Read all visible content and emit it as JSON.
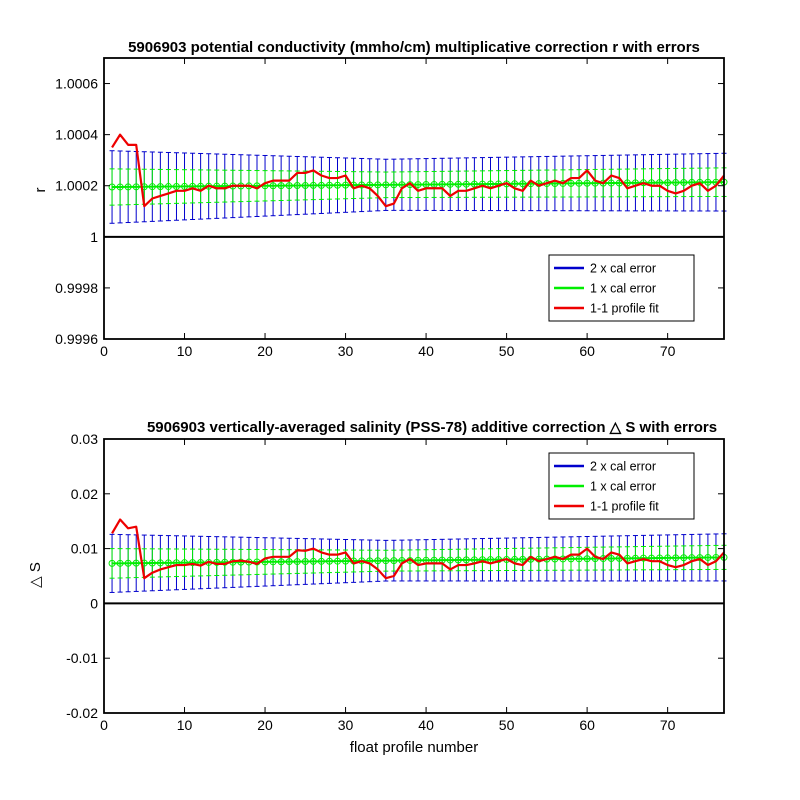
{
  "colors": {
    "cal2": "#0000cc",
    "cal1": "#00ee00",
    "fit": "#ee0000",
    "zero": "#000000"
  },
  "legend_labels": [
    "2 x cal error",
    "1 x cal error",
    "1-1 profile fit"
  ],
  "chart_data": [
    {
      "type": "line",
      "title": "5906903 potential conductivity (mmho/cm) multiplicative correction r with errors",
      "xlabel": "",
      "ylabel": "r",
      "xlim": [
        0,
        77
      ],
      "ylim": [
        0.9996,
        1.0007
      ],
      "xticks": [
        0,
        10,
        20,
        30,
        40,
        50,
        60,
        70
      ],
      "xtick_labels": [
        "0",
        "10",
        "20",
        "30",
        "40",
        "50",
        "60",
        "70"
      ],
      "yticks": [
        0.9996,
        0.9998,
        1.0,
        1.0002,
        1.0004,
        1.0006
      ],
      "ytick_labels": [
        "0.9996",
        "0.9998",
        "1",
        "1.0002",
        "1.0004",
        "1.0006"
      ],
      "zero_line": 1.0,
      "legend_position": "bottom-right",
      "cal_fit": {
        "start": 1.000195,
        "end": 1.000214
      },
      "err2_halfwidth": {
        "start": 0.000142,
        "mid": 0.0001,
        "end": 0.000113
      },
      "err1_halfwidth": {
        "start": 7.1e-05,
        "mid": 5e-05,
        "end": 5.6e-05
      },
      "series": [
        {
          "name": "1-1 profile fit",
          "x": [
            1,
            2,
            3,
            4,
            5,
            6,
            7,
            8,
            9,
            10,
            11,
            12,
            13,
            14,
            15,
            16,
            17,
            18,
            19,
            20,
            21,
            22,
            23,
            24,
            25,
            26,
            27,
            28,
            29,
            30,
            31,
            32,
            33,
            34,
            35,
            36,
            37,
            38,
            39,
            40,
            41,
            42,
            43,
            44,
            45,
            46,
            47,
            48,
            49,
            50,
            51,
            52,
            53,
            54,
            55,
            56,
            57,
            58,
            59,
            60,
            61,
            62,
            63,
            64,
            65,
            66,
            67,
            68,
            69,
            70,
            71,
            72,
            73,
            74,
            75,
            76,
            77
          ],
          "values": [
            1.00035,
            1.0004,
            1.00036,
            1.00036,
            1.00012,
            1.00015,
            1.00016,
            1.00017,
            1.00018,
            1.00018,
            1.00019,
            1.00018,
            1.0002,
            1.00019,
            1.00019,
            1.0002,
            1.0002,
            1.0002,
            1.00019,
            1.00021,
            1.00022,
            1.00022,
            1.00022,
            1.00025,
            1.00025,
            1.00026,
            1.00024,
            1.00023,
            1.00023,
            1.00024,
            1.00019,
            1.0002,
            1.00019,
            1.00016,
            1.00012,
            1.00013,
            1.00019,
            1.00021,
            1.00018,
            1.00019,
            1.00019,
            1.00019,
            1.00016,
            1.00018,
            1.00018,
            1.00019,
            1.0002,
            1.00019,
            1.0002,
            1.00021,
            1.00019,
            1.00018,
            1.00022,
            1.0002,
            1.00021,
            1.00022,
            1.00021,
            1.00023,
            1.00023,
            1.00026,
            1.00022,
            1.00021,
            1.00024,
            1.00023,
            1.00019,
            1.0002,
            1.00021,
            1.0002,
            1.0002,
            1.00018,
            1.00017,
            1.00018,
            1.0002,
            1.00021,
            1.00018,
            1.0002,
            1.00024
          ]
        }
      ]
    },
    {
      "type": "line",
      "title": "5906903 vertically-averaged salinity (PSS-78) additive correction △ S with errors",
      "xlabel": "float profile number",
      "ylabel": "△ S",
      "xlim": [
        0,
        77
      ],
      "ylim": [
        -0.02,
        0.03
      ],
      "xticks": [
        0,
        10,
        20,
        30,
        40,
        50,
        60,
        70
      ],
      "xtick_labels": [
        "0",
        "10",
        "20",
        "30",
        "40",
        "50",
        "60",
        "70"
      ],
      "yticks": [
        -0.02,
        -0.01,
        0,
        0.01,
        0.02,
        0.03
      ],
      "ytick_labels": [
        "-0.02",
        "-0.01",
        "0",
        "0.01",
        "0.02",
        "0.03"
      ],
      "zero_line": 0,
      "legend_position": "top-right",
      "cal_fit": {
        "start": 0.0073,
        "end": 0.0084
      },
      "err2_halfwidth": {
        "start": 0.0053,
        "mid": 0.0037,
        "end": 0.0043
      },
      "err1_halfwidth": {
        "start": 0.0027,
        "mid": 0.0019,
        "end": 0.0022
      },
      "series": [
        {
          "name": "1-1 profile fit",
          "x": [
            1,
            2,
            3,
            4,
            5,
            6,
            7,
            8,
            9,
            10,
            11,
            12,
            13,
            14,
            15,
            16,
            17,
            18,
            19,
            20,
            21,
            22,
            23,
            24,
            25,
            26,
            27,
            28,
            29,
            30,
            31,
            32,
            33,
            34,
            35,
            36,
            37,
            38,
            39,
            40,
            41,
            42,
            43,
            44,
            45,
            46,
            47,
            48,
            49,
            50,
            51,
            52,
            53,
            54,
            55,
            56,
            57,
            58,
            59,
            60,
            61,
            62,
            63,
            64,
            65,
            66,
            67,
            68,
            69,
            70,
            71,
            72,
            73,
            74,
            75,
            76,
            77
          ],
          "values": [
            0.0128,
            0.0153,
            0.0137,
            0.014,
            0.0046,
            0.0056,
            0.0062,
            0.0066,
            0.007,
            0.007,
            0.0072,
            0.0069,
            0.0076,
            0.0072,
            0.0072,
            0.0077,
            0.0078,
            0.0076,
            0.0072,
            0.0082,
            0.0085,
            0.0085,
            0.0085,
            0.0097,
            0.0096,
            0.01,
            0.0093,
            0.0089,
            0.0089,
            0.0093,
            0.0073,
            0.0077,
            0.0073,
            0.0062,
            0.0046,
            0.005,
            0.0073,
            0.0081,
            0.007,
            0.0073,
            0.0073,
            0.0073,
            0.0062,
            0.007,
            0.007,
            0.0073,
            0.0077,
            0.0073,
            0.0077,
            0.0081,
            0.0073,
            0.007,
            0.0085,
            0.0077,
            0.0081,
            0.0085,
            0.0081,
            0.0089,
            0.0089,
            0.01,
            0.0085,
            0.0081,
            0.0093,
            0.0089,
            0.0073,
            0.0077,
            0.0081,
            0.0077,
            0.0077,
            0.007,
            0.0066,
            0.007,
            0.0077,
            0.0081,
            0.007,
            0.0077,
            0.0093
          ]
        }
      ]
    }
  ]
}
